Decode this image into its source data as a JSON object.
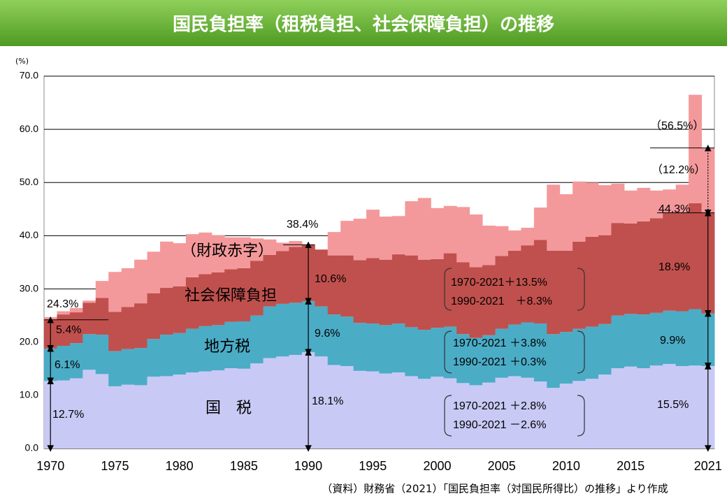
{
  "chart_data": {
    "type": "stacked_bar",
    "title": "国民負担率（租税負担、社会保障負担）の推移",
    "y_unit": "(%)",
    "source": "（資料）財務省（2021）「国民負担率（対国民所得比）の推移」より作成",
    "categories": [
      "1970",
      null,
      null,
      null,
      null,
      "1975",
      null,
      null,
      null,
      null,
      "1980",
      null,
      null,
      null,
      null,
      "1985",
      null,
      null,
      null,
      null,
      "1990",
      null,
      null,
      null,
      null,
      "1995",
      null,
      null,
      null,
      null,
      "2000",
      null,
      null,
      null,
      null,
      "2005",
      null,
      null,
      null,
      null,
      "2010",
      null,
      null,
      null,
      null,
      "2015",
      null,
      null,
      null,
      null,
      null,
      "2021"
    ],
    "series": [
      {
        "name": "国　税",
        "color": "#c9c9f5",
        "values": [
          12.7,
          12.8,
          13.2,
          14.8,
          14.0,
          11.7,
          12.0,
          11.9,
          13.5,
          13.6,
          13.9,
          14.3,
          14.5,
          14.7,
          15.1,
          15.0,
          16.0,
          17.0,
          17.3,
          17.6,
          18.1,
          17.3,
          15.7,
          15.5,
          14.6,
          14.5,
          14.1,
          14.3,
          13.6,
          13.1,
          13.5,
          13.2,
          12.3,
          11.9,
          12.4,
          13.3,
          13.6,
          13.3,
          12.6,
          11.4,
          12.2,
          12.7,
          13.1,
          13.9,
          15.1,
          15.4,
          15.1,
          15.6,
          15.9,
          15.5,
          15.6,
          15.5
        ]
      },
      {
        "name": "地方税",
        "color": "#4bacc6",
        "values": [
          6.1,
          6.5,
          6.6,
          6.7,
          7.4,
          6.6,
          6.7,
          7.0,
          7.1,
          7.8,
          7.8,
          8.2,
          8.5,
          8.5,
          8.7,
          8.9,
          9.0,
          9.7,
          9.9,
          9.8,
          9.6,
          9.4,
          9.5,
          9.3,
          9.0,
          9.0,
          9.1,
          9.2,
          9.2,
          9.2,
          9.2,
          9.7,
          9.2,
          8.9,
          8.9,
          9.2,
          9.7,
          10.4,
          10.9,
          10.1,
          9.7,
          9.8,
          9.8,
          9.5,
          9.9,
          9.9,
          10.1,
          9.9,
          10.0,
          10.3,
          10.6,
          9.9
        ]
      },
      {
        "name": "社会保障負担",
        "color": "#c0504d",
        "values": [
          5.4,
          5.9,
          5.8,
          5.9,
          6.9,
          7.4,
          7.9,
          8.4,
          8.6,
          8.8,
          8.8,
          9.7,
          9.8,
          9.9,
          9.9,
          10.0,
          10.3,
          9.7,
          9.9,
          10.5,
          10.6,
          10.7,
          11.1,
          11.5,
          11.8,
          12.3,
          12.3,
          13.0,
          13.5,
          13.2,
          12.9,
          13.8,
          13.5,
          13.3,
          13.2,
          13.7,
          13.9,
          14.5,
          15.7,
          15.7,
          15.3,
          16.4,
          16.9,
          16.7,
          17.4,
          17.0,
          17.5,
          17.8,
          18.4,
          18.6,
          19.9,
          18.9
        ]
      },
      {
        "name": "（財政赤字）",
        "color": "#f4999b",
        "values": [
          0.5,
          0.6,
          0.8,
          0.4,
          3.2,
          7.5,
          7.3,
          8.2,
          7.8,
          8.7,
          8.1,
          8.1,
          7.8,
          7.0,
          6.0,
          5.8,
          4.2,
          2.9,
          1.6,
          1.1,
          0,
          0,
          4.4,
          6.5,
          7.8,
          9.1,
          8.1,
          7.2,
          10.2,
          11.6,
          9.6,
          8.9,
          10.4,
          9.9,
          7.4,
          5.6,
          3.8,
          3.3,
          6.1,
          12.4,
          10.6,
          11.3,
          10.2,
          9.4,
          7.4,
          6.2,
          6.3,
          5.2,
          4.4,
          5.2,
          20.4,
          12.2
        ]
      }
    ],
    "ylim": [
      0,
      70
    ],
    "yticks": [
      {
        "value": 0,
        "label": "0.0"
      },
      {
        "value": 10,
        "label": "10.0"
      },
      {
        "value": 20,
        "label": "20.0"
      },
      {
        "value": 30,
        "label": "30.0"
      },
      {
        "value": 40,
        "label": "40.0"
      },
      {
        "value": 50,
        "label": "50.0"
      },
      {
        "value": 60,
        "label": "60.0"
      },
      {
        "value": 70,
        "label": "70.0"
      }
    ],
    "grid": true,
    "annotations": [
      "24.3%",
      "5.4%",
      "6.1%",
      "12.7%",
      "38.4%",
      "10.6%",
      "9.6%",
      "18.1%",
      "1970-2021＋13.5%",
      "1990-2021　＋8.3%",
      "1970-2021 ＋3.8%",
      "1990-2021 ＋0.3%",
      "1970-2021 ＋2.8%",
      "1990-2021 －2.6%",
      "（56.5%）",
      "（12.2%）",
      "44.3%",
      "18.9%",
      "9.9%",
      "15.5%"
    ]
  }
}
